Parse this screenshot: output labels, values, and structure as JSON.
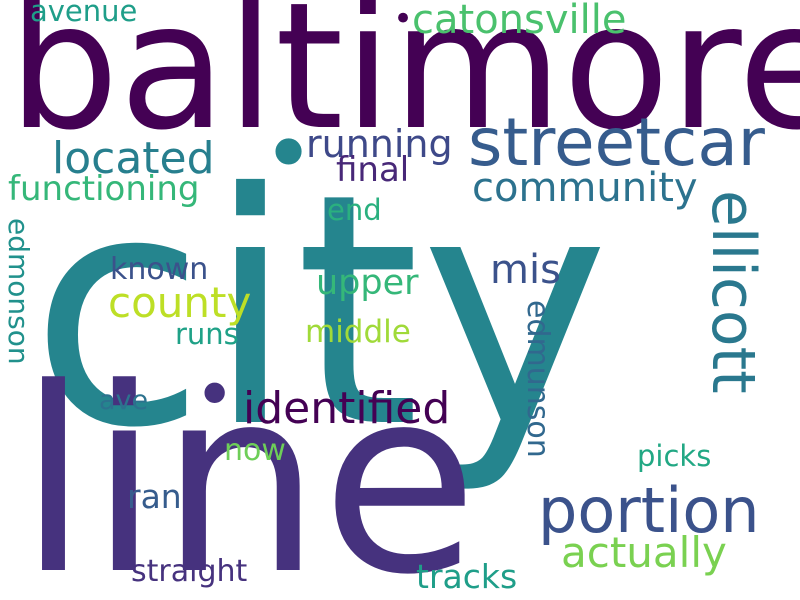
{
  "palette": {
    "background": "#ffffff",
    "dark_purple": "#440154",
    "indigo": "#46327e",
    "slate_blue": "#365c8d",
    "steel_blue": "#277f8e",
    "teal": "#1fa187",
    "green": "#4ac16d",
    "light_green": "#a0da39",
    "yellow_green": "#bddf26"
  },
  "words": [
    {
      "text": "city",
      "size": 1.0,
      "color": "#25858e"
    },
    {
      "text": "line",
      "size": 0.82,
      "color": "#46327e"
    },
    {
      "text": "baltimore",
      "size": 0.6,
      "color": "#440154"
    },
    {
      "text": "streetcar",
      "size": 0.22,
      "color": "#365c8d"
    },
    {
      "text": "ellicott",
      "size": 0.2,
      "color": "#2a788e"
    },
    {
      "text": "portion",
      "size": 0.2,
      "color": "#3b528b"
    },
    {
      "text": "identified",
      "size": 0.16,
      "color": "#440154"
    },
    {
      "text": "located",
      "size": 0.16,
      "color": "#277f8e"
    },
    {
      "text": "catonsville",
      "size": 0.15,
      "color": "#4ac16d"
    },
    {
      "text": "community",
      "size": 0.15,
      "color": "#2c728e"
    },
    {
      "text": "county",
      "size": 0.15,
      "color": "#bddf26"
    },
    {
      "text": "actually",
      "size": 0.15,
      "color": "#7ad151"
    },
    {
      "text": "running",
      "size": 0.13,
      "color": "#3e4989"
    },
    {
      "text": "functioning",
      "size": 0.13,
      "color": "#35b779"
    },
    {
      "text": "mis",
      "size": 0.13,
      "color": "#3b528b"
    },
    {
      "text": "upper",
      "size": 0.12,
      "color": "#35b779"
    },
    {
      "text": "final",
      "size": 0.11,
      "color": "#482878"
    },
    {
      "text": "edmunson",
      "size": 0.11,
      "color": "#31688e"
    },
    {
      "text": "edmonson",
      "size": 0.11,
      "color": "#21918c"
    },
    {
      "text": "known",
      "size": 0.11,
      "color": "#3b528b"
    },
    {
      "text": "middle",
      "size": 0.11,
      "color": "#a0da39"
    },
    {
      "text": "tracks",
      "size": 0.11,
      "color": "#1f9e89"
    },
    {
      "text": "picks",
      "size": 0.11,
      "color": "#22a884"
    },
    {
      "text": "straight",
      "size": 0.1,
      "color": "#46327e"
    },
    {
      "text": "avenue",
      "size": 0.1,
      "color": "#1f9e89"
    },
    {
      "text": "runs",
      "size": 0.1,
      "color": "#1fa187"
    },
    {
      "text": "now",
      "size": 0.1,
      "color": "#6ece58"
    },
    {
      "text": "ran",
      "size": 0.1,
      "color": "#365c8d"
    },
    {
      "text": "end",
      "size": 0.1,
      "color": "#2ab07f"
    },
    {
      "text": "ave",
      "size": 0.1,
      "color": "#2c728e"
    }
  ]
}
